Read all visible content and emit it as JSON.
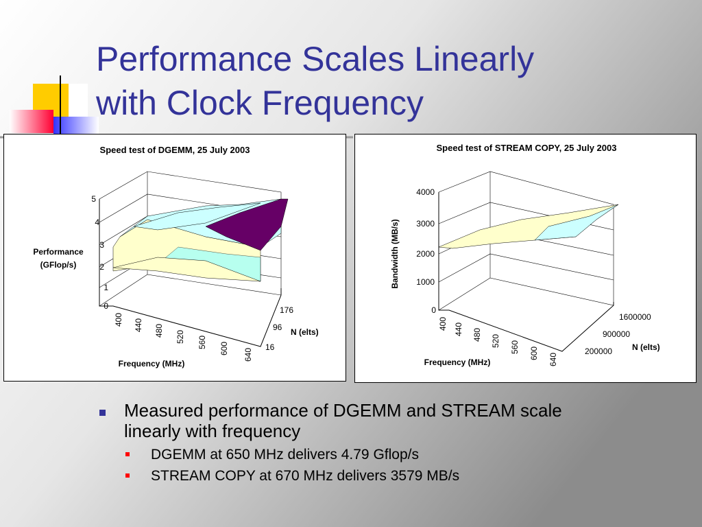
{
  "title": [
    "Performance Scales Linearly",
    "with Clock Frequency"
  ],
  "charts": [
    {
      "title": "Speed test of DGEMM, 25 July 2003",
      "y_label": [
        "Performance",
        "(GFlop/s)"
      ],
      "yticks": [
        0,
        1,
        2,
        3,
        4,
        5
      ],
      "x_label": "Frequency (MHz)",
      "xticks": [
        400,
        440,
        480,
        520,
        560,
        600,
        640
      ],
      "z_label": "N (elts)",
      "zticks": [
        16,
        96,
        176
      ]
    },
    {
      "title": "Speed test of STREAM COPY, 25 July 2003",
      "y_label": [
        "Bandwidth (MB/s)"
      ],
      "yticks": [
        0,
        1000,
        2000,
        3000,
        4000
      ],
      "x_label": "Frequency (MHz)",
      "xticks": [
        400,
        440,
        480,
        520,
        560,
        600,
        640
      ],
      "z_label": "N (elts)",
      "zticks": [
        200000,
        900000,
        1600000
      ]
    }
  ],
  "bullets": [
    {
      "text": [
        "Measured performance of DGEMM and STREAM scale",
        "linearly with frequency"
      ],
      "sub": [
        "DGEMM at 650 MHz delivers 4.79 Gflop/s",
        "STREAM COPY at 670 MHz delivers 3579 MB/s"
      ]
    }
  ]
}
